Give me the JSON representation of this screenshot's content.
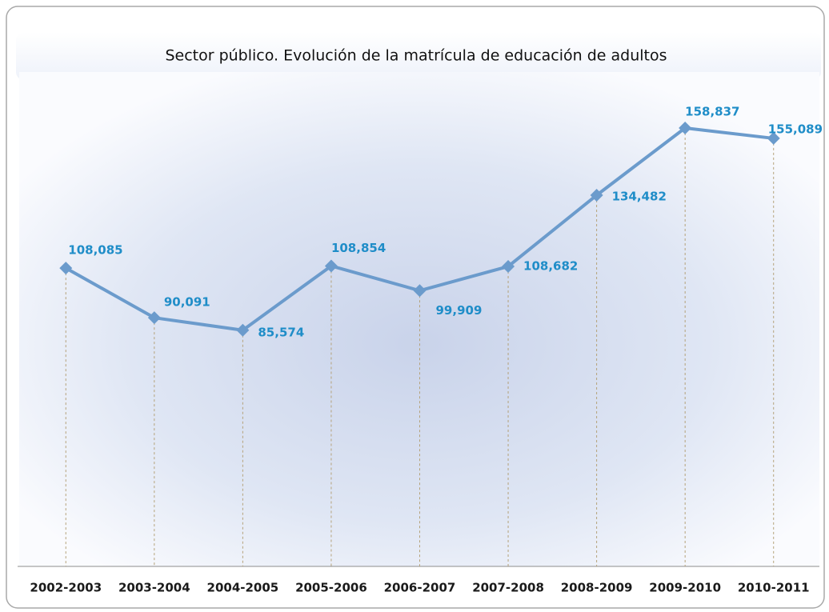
{
  "chart_data": {
    "type": "line",
    "title": "Sector público. Evolución de la matrícula de educación de adultos",
    "categories": [
      "2002-2003",
      "2003-2004",
      "2004-2005",
      "2005-2006",
      "2006-2007",
      "2007-2008",
      "2008-2009",
      "2009-2010",
      "2010-2011"
    ],
    "series": [
      {
        "name": "Matrícula",
        "color": "#6b9bcc",
        "values": [
          108085,
          90091,
          85574,
          108854,
          99909,
          108682,
          134482,
          158837,
          155089
        ],
        "value_labels": [
          "108,085",
          "90,091",
          "85,574",
          "108,854",
          "99,909",
          "108,682",
          "134,482",
          "158,837",
          "155,089"
        ]
      }
    ]
  }
}
